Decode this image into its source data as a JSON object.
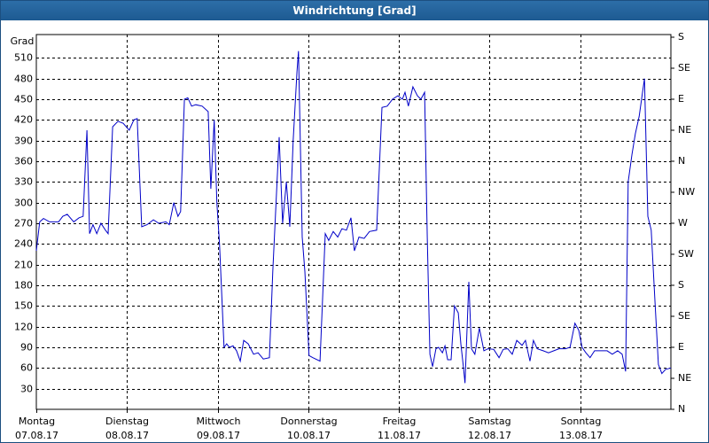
{
  "chart_data": {
    "type": "line",
    "title": "Windrichtung [Grad]",
    "y_label": "Grad",
    "x": [
      0,
      0.9,
      1.9,
      3.5,
      5.9,
      7.0,
      8.2,
      9.9,
      11.3,
      12.4,
      13.4,
      14.1,
      15.0,
      16.0,
      17.1,
      18.3,
      19.0,
      20.2,
      21.6,
      23.0,
      24.6,
      25.8,
      26.7,
      27.9,
      29.3,
      31.0,
      32.4,
      34.3,
      35.2,
      36.4,
      37.5,
      38.2,
      39.2,
      40.1,
      41.1,
      42.2,
      43.9,
      45.5,
      46.2,
      47.1,
      47.8,
      48.5,
      49.7,
      50.4,
      51.1,
      52.1,
      53.0,
      54.0,
      54.9,
      56.1,
      57.5,
      58.7,
      60.1,
      61.7,
      62.6,
      64.3,
      65.2,
      66.2,
      67.1,
      68.0,
      69.0,
      69.4,
      70.4,
      71.1,
      72.2,
      73.2,
      75.1,
      76.5,
      77.4,
      78.6,
      79.8,
      80.9,
      82.1,
      83.3,
      84.2,
      85.4,
      86.8,
      88.2,
      90.1,
      91.5,
      92.9,
      94.3,
      95.7,
      96.9,
      97.6,
      98.5,
      99.7,
      100.9,
      101.8,
      102.8,
      103.5,
      104.2,
      104.9,
      105.8,
      106.5,
      107.5,
      108.2,
      108.9,
      109.8,
      110.7,
      111.7,
      112.4,
      113.1,
      113.5,
      114.5,
      115.2,
      116.1,
      117.3,
      118.5,
      119.6,
      121.1,
      122.5,
      123.6,
      124.8,
      126.0,
      127.2,
      128.6,
      129.5,
      130.2,
      130.7,
      131.6,
      132.6,
      134.2,
      135.6,
      137.0,
      138.4,
      140.1,
      141.3,
      142.6,
      143.6,
      144.5,
      145.5,
      146.6,
      147.8,
      149.4,
      151.1,
      152.5,
      153.9,
      155.1,
      156.0,
      156.7,
      157.7,
      158.6,
      159.6,
      160.5,
      161.0,
      161.9,
      162.8,
      163.8,
      164.7,
      165.6,
      166.6,
      168.0
    ],
    "series": [
      {
        "name": "Windrichtung",
        "color": "#0000c8",
        "values": [
          230,
          272,
          277,
          272,
          272,
          280,
          283,
          272,
          278,
          280,
          405,
          255,
          268,
          255,
          270,
          260,
          255,
          410,
          418,
          415,
          405,
          420,
          422,
          265,
          268,
          275,
          270,
          272,
          268,
          300,
          280,
          287,
          450,
          452,
          440,
          442,
          440,
          432,
          320,
          420,
          300,
          240,
          90,
          95,
          90,
          92,
          85,
          70,
          100,
          95,
          80,
          82,
          73,
          75,
          200,
          395,
          270,
          330,
          265,
          390,
          490,
          520,
          250,
          200,
          78,
          75,
          70,
          255,
          245,
          258,
          250,
          262,
          260,
          278,
          230,
          250,
          248,
          258,
          260,
          438,
          440,
          450,
          455,
          450,
          460,
          440,
          468,
          455,
          450,
          460,
          250,
          80,
          62,
          88,
          90,
          82,
          92,
          72,
          72,
          150,
          140,
          95,
          60,
          38,
          185,
          88,
          80,
          118,
          85,
          88,
          87,
          75,
          87,
          88,
          80,
          100,
          93,
          100,
          82,
          70,
          100,
          88,
          85,
          82,
          85,
          88,
          88,
          90,
          125,
          115,
          90,
          82,
          75,
          85,
          85,
          85,
          80,
          85,
          80,
          55,
          330,
          370,
          400,
          425,
          460,
          480,
          280,
          260,
          155,
          65,
          52,
          58,
          60
        ]
      }
    ],
    "xlim": [
      0,
      168
    ],
    "xticks": [
      {
        "value": 0,
        "label": [
          "Montag",
          "07.08.17"
        ]
      },
      {
        "value": 24,
        "label": [
          "Dienstag",
          "08.08.17"
        ]
      },
      {
        "value": 48,
        "label": [
          "Mittwoch",
          "09.08.17"
        ]
      },
      {
        "value": 72,
        "label": [
          "Donnerstag",
          "10.08.17"
        ]
      },
      {
        "value": 96,
        "label": [
          "Freitag",
          "11.08.17"
        ]
      },
      {
        "value": 120,
        "label": [
          "Samstag",
          "12.08.17"
        ]
      },
      {
        "value": 144,
        "label": [
          "Sonntag",
          "13.08.17"
        ]
      }
    ],
    "ylim": [
      0,
      540
    ],
    "yticks": [
      30,
      60,
      90,
      120,
      150,
      180,
      210,
      240,
      270,
      300,
      330,
      360,
      390,
      420,
      450,
      480,
      510
    ],
    "y2lim": [
      0,
      540
    ],
    "y2ticks": [
      {
        "value": 540,
        "label": "S"
      },
      {
        "value": 495,
        "label": "SE"
      },
      {
        "value": 450,
        "label": "E"
      },
      {
        "value": 405,
        "label": "NE"
      },
      {
        "value": 360,
        "label": "N"
      },
      {
        "value": 315,
        "label": "NW"
      },
      {
        "value": 270,
        "label": "W"
      },
      {
        "value": 225,
        "label": "SW"
      },
      {
        "value": 180,
        "label": "S"
      },
      {
        "value": 135,
        "label": "SE"
      },
      {
        "value": 90,
        "label": "E"
      },
      {
        "value": 45,
        "label": "NE"
      },
      {
        "value": 0,
        "label": "N"
      }
    ],
    "grid": true
  }
}
